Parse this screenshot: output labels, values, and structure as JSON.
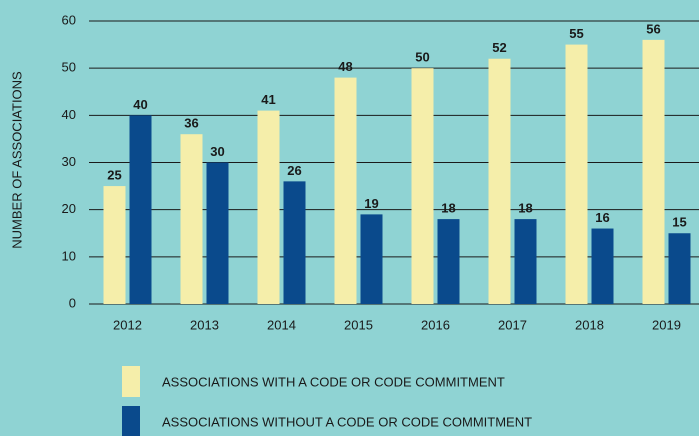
{
  "chart_data": {
    "type": "bar",
    "y_label": "NUMBER OF ASSOCIATIONS",
    "categories": [
      "2012",
      "2013",
      "2014",
      "2015",
      "2016",
      "2017",
      "2018",
      "2019"
    ],
    "series": [
      {
        "name": "ASSOCIATIONS WITH A CODE OR CODE COMMITMENT",
        "color": "#f5eeaa",
        "values": [
          25,
          36,
          41,
          48,
          50,
          52,
          55,
          56
        ]
      },
      {
        "name": "ASSOCIATIONS WITHOUT A CODE OR CODE COMMITMENT",
        "color": "#0a4a8c",
        "values": [
          40,
          30,
          26,
          19,
          18,
          18,
          16,
          15
        ]
      }
    ],
    "ylim": [
      0,
      60
    ],
    "yticks": [
      0,
      10,
      20,
      30,
      40,
      50,
      60
    ],
    "grid": true,
    "legend": "bottom"
  }
}
